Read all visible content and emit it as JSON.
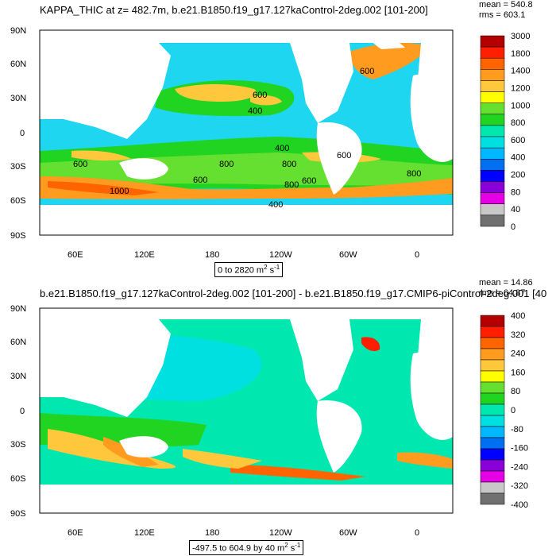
{
  "panels": [
    {
      "title": "KAPPA_THIC at z= 482.7m, b.e21.B1850.f19_g17.127kaControl-2deg.002 [101-200]",
      "mean": "mean = 540.8",
      "rms": "rms = 603.1",
      "range_main": "0 to 2820 m",
      "range_sup": "2",
      "range_unit": "s",
      "range_unit_sup": "-1",
      "lat_labels": [
        "90N",
        "60N",
        "30N",
        "0",
        "30S",
        "60S",
        "90S"
      ],
      "lon_labels": [
        "60E",
        "120E",
        "180",
        "120W",
        "60W",
        "0"
      ],
      "colorbar_labels": [
        "3000",
        "1800",
        "1400",
        "1200",
        "1000",
        "800",
        "600",
        "400",
        "200",
        "80",
        "40",
        "0"
      ],
      "colorbar_colors": [
        "#b40000",
        "#ff1e00",
        "#ff6400",
        "#ff9b1e",
        "#ffc83c",
        "#ffff00",
        "#66e030",
        "#22d422",
        "#00e8b0",
        "#00e0e0",
        "#00b8ff",
        "#0070f0",
        "#0000ff",
        "#8a00d8",
        "#e600e6",
        "#c8c8c8",
        "#707070"
      ],
      "contour_labels": [
        "600",
        "400",
        "400",
        "600",
        "600",
        "800",
        "800",
        "600",
        "800",
        "1000",
        "600",
        "400",
        "800",
        "600"
      ]
    },
    {
      "title": "b.e21.B1850.f19_g17.127kaControl-2deg.002 [101-200] - b.e21.B1850.f19_g17.CMIP6-piControl-2deg.001 [40",
      "mean": "mean = 14.86",
      "rms": "rms = 64.87",
      "range_main": "-497.5 to 604.9 by 40 m",
      "range_sup": "2",
      "range_unit": "s",
      "range_unit_sup": "-1",
      "lat_labels": [
        "90N",
        "60N",
        "30N",
        "0",
        "30S",
        "60S",
        "90S"
      ],
      "lon_labels": [
        "60E",
        "120E",
        "180",
        "120W",
        "60W",
        "0"
      ],
      "colorbar_labels": [
        "400",
        "320",
        "240",
        "160",
        "80",
        "0",
        "-80",
        "-160",
        "-240",
        "-320",
        "-400"
      ],
      "colorbar_colors": [
        "#b40000",
        "#ff1e00",
        "#ff6400",
        "#ff9b1e",
        "#ffc83c",
        "#ffff00",
        "#66e030",
        "#22d422",
        "#00e8b0",
        "#00e0e0",
        "#00b8ff",
        "#0070f0",
        "#0000ff",
        "#8a00d8",
        "#e600e6",
        "#c8c8c8",
        "#707070"
      ]
    }
  ],
  "colors": {
    "ocean_base": "#1ed6f0",
    "land": "#ffffff",
    "ocean_diff_base": "#00e8b0"
  }
}
